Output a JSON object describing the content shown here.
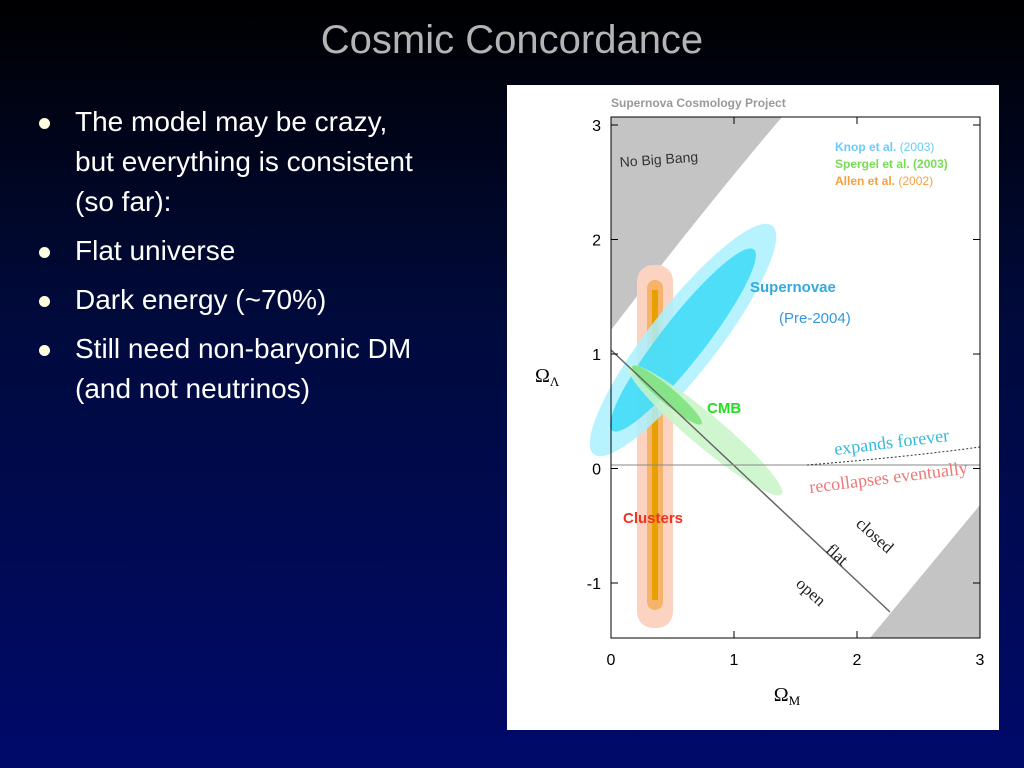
{
  "title": "Cosmic Concordance",
  "bullets": [
    [
      "The model may be crazy,",
      "but everything is consistent",
      "(so far):"
    ],
    [
      "Flat universe"
    ],
    [
      "Dark energy (~70%)"
    ],
    [
      "Still need non-baryonic DM",
      "(and not neutrinos)"
    ]
  ],
  "figure": {
    "header": "Supernova Cosmology Project",
    "x_label": {
      "symbol": "Ω",
      "subscript": "M"
    },
    "y_label": {
      "symbol": "Ω",
      "subscript": "Λ"
    },
    "xticks": [
      "0",
      "1",
      "2",
      "3"
    ],
    "yticks": [
      "3",
      "2",
      "1",
      "0",
      "-1"
    ],
    "legend": [
      {
        "name": "Knop et al.",
        "year": "(2003)"
      },
      {
        "name": "Spergel et al.",
        "year": "(2003)"
      },
      {
        "name": "Allen et al.",
        "year": "(2002)"
      }
    ],
    "labels": {
      "no_big_bang": "No Big Bang",
      "supernovae": "Supernovae",
      "pre": "(Pre-2004)",
      "cmb": "CMB",
      "clusters": "Clusters",
      "expands": "expands forever",
      "recollapses": "recollapses eventually",
      "closed": "closed",
      "flat": "flat",
      "open": "open"
    }
  }
}
